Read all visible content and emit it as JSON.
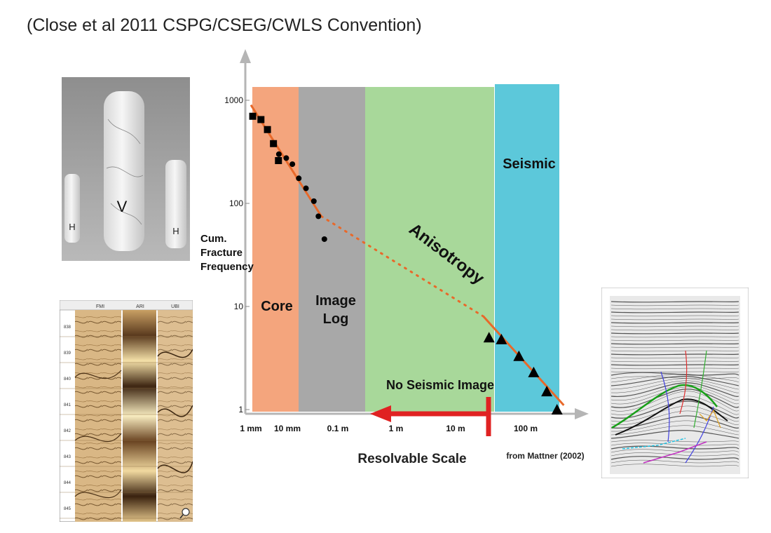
{
  "header": {
    "text": "(Close et al 2011 CSPG/CSEG/CWLS Convention)"
  },
  "photos": {
    "core_letters": [
      "H",
      "V",
      "H"
    ]
  },
  "image_log": {
    "column_labels": [
      "FMI",
      "ARI",
      "UBI"
    ],
    "depths": [
      "838",
      "839",
      "840",
      "841",
      "842",
      "843",
      "844",
      "845"
    ]
  },
  "seismic_panel": {},
  "chart_data": {
    "type": "scatter",
    "title": "",
    "ylabel_lines": [
      "Cum.",
      "Fracture",
      "Frequency"
    ],
    "ylabel": "Cum. Fracture Frequency",
    "xlabel": "",
    "y_scale": "log",
    "ylim": [
      1,
      1500
    ],
    "y_ticks": [
      1000,
      100,
      10,
      1
    ],
    "y_tick_labels": [
      "1000",
      "100",
      "10",
      "1"
    ],
    "x_tick_labels": [
      "1 mm",
      "10 mm",
      "0.1 m",
      "1 m",
      "10 m",
      "100 m"
    ],
    "bands": [
      {
        "name": "core",
        "label_lines": [
          "Core"
        ],
        "color": "#f4a57d"
      },
      {
        "name": "image-log",
        "label_lines": [
          "Image",
          "Log"
        ],
        "color": "#a8a8a8"
      },
      {
        "name": "no-seismic",
        "label_lines": [],
        "color": "#a8d89a"
      },
      {
        "name": "seismic",
        "label_lines": [
          "Seismic"
        ],
        "color": "#5cc8da"
      }
    ],
    "series": [
      {
        "marker": "square",
        "points": [
          [
            0.0011,
            700
          ],
          [
            0.0017,
            650
          ],
          [
            0.0024,
            520
          ],
          [
            0.0033,
            380
          ],
          [
            0.0043,
            260
          ]
        ]
      },
      {
        "marker": "circle",
        "points": [
          [
            0.0044,
            300
          ],
          [
            0.0065,
            275
          ],
          [
            0.009,
            240
          ],
          [
            0.013,
            175
          ],
          [
            0.02,
            140
          ],
          [
            0.032,
            105
          ],
          [
            0.042,
            75
          ],
          [
            0.06,
            45
          ]
        ]
      },
      {
        "marker": "triangle",
        "points": [
          [
            30,
            5
          ],
          [
            45,
            4.8
          ],
          [
            80,
            3.3
          ],
          [
            130,
            2.3
          ],
          [
            200,
            1.5
          ],
          [
            280,
            1.0
          ]
        ]
      }
    ],
    "trend_lines": [
      {
        "style": "solid",
        "from": [
          0.001,
          900
        ],
        "to": [
          0.05,
          75
        ]
      },
      {
        "style": "dotted",
        "from": [
          0.05,
          75
        ],
        "to": [
          25,
          8
        ]
      },
      {
        "style": "solid",
        "from": [
          25,
          8
        ],
        "to": [
          350,
          1.1
        ]
      }
    ],
    "annotations": {
      "anisotropy": "Anisotropy",
      "no_seismic_image": "No Seismic Image",
      "resolvable_scale": "Resolvable Scale",
      "source": "from Mattner (2002)"
    },
    "colors": {
      "trend": "#e8692a",
      "arrow": "#e02222",
      "axis": "#b5b5b5",
      "marker": "#000000"
    }
  }
}
